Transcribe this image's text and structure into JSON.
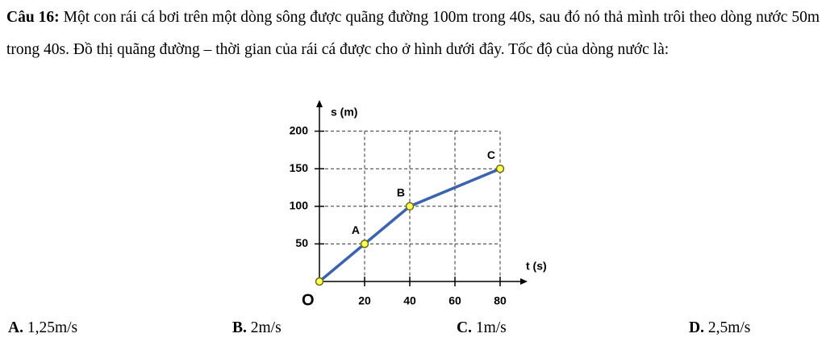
{
  "question": {
    "label": "Câu 16:",
    "text": "Một con rái cá bơi trên một dòng sông được quãng đường 100m trong 40s, sau đó nó thả mình trôi theo dòng nước 50m trong 40s. Đồ thị quãng đường – thời gian của rái cá được cho ở hình dưới đây. Tốc độ của dòng nước là:"
  },
  "chart_data": {
    "type": "line",
    "x_label": "t (s)",
    "y_label": "s (m)",
    "origin_label": "O",
    "x": [
      0,
      20,
      40,
      80
    ],
    "values": [
      0,
      50,
      100,
      150
    ],
    "point_labels": [
      null,
      "A",
      "B",
      "C"
    ],
    "color": "#3c63ac",
    "marker_color": "#ffff66",
    "xlim": [
      0,
      90
    ],
    "ylim": [
      0,
      235
    ],
    "xticks": [
      20,
      40,
      60,
      80
    ],
    "yticks": [
      50,
      100,
      150,
      200
    ],
    "grid": true
  },
  "options": [
    {
      "label": "A.",
      "text": "1,25m/s"
    },
    {
      "label": "B.",
      "text": "2m/s"
    },
    {
      "label": "C.",
      "text": "1m/s"
    },
    {
      "label": "D.",
      "text": "2,5m/s"
    }
  ]
}
